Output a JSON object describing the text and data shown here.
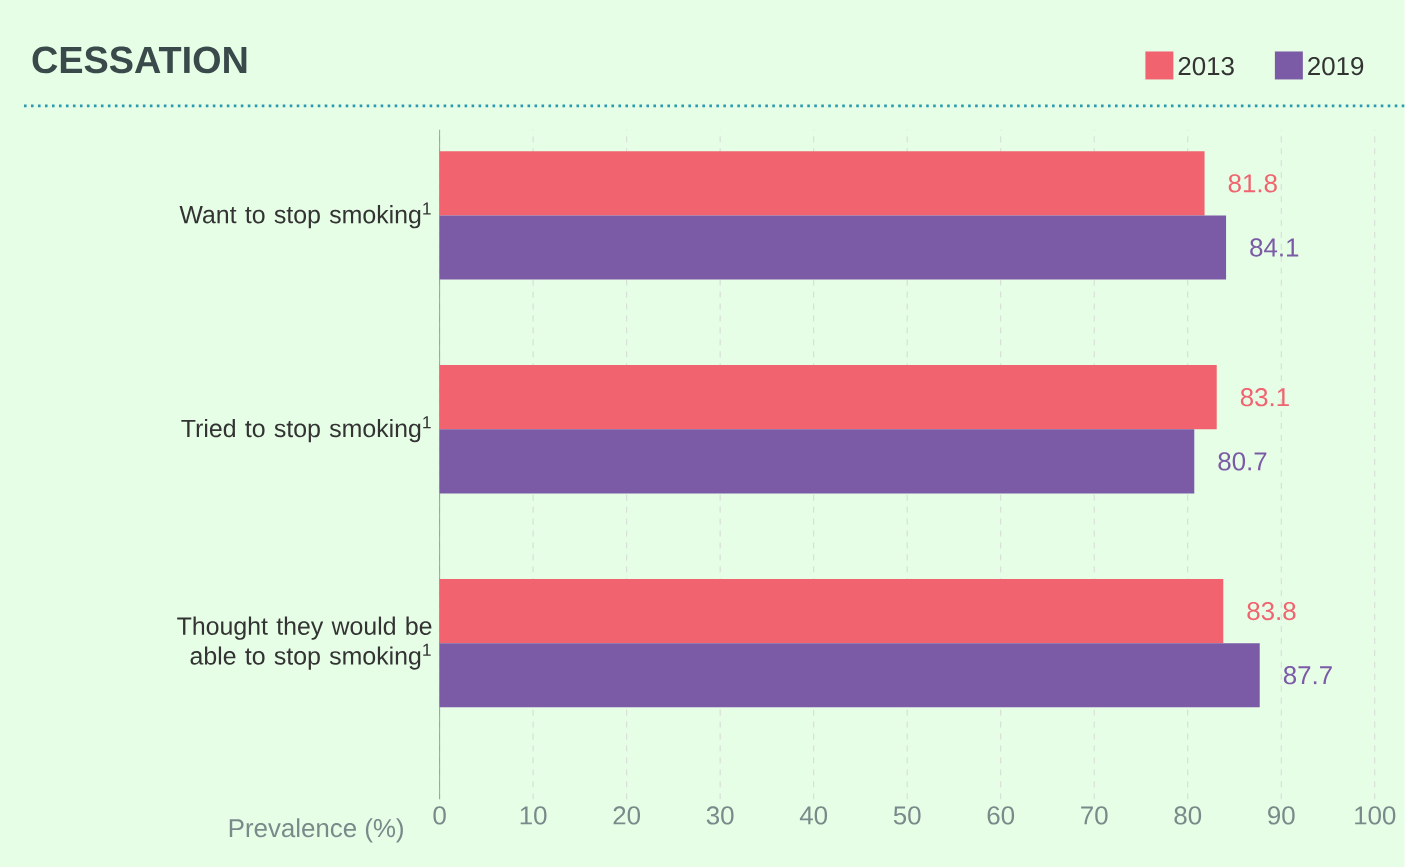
{
  "chart_data": {
    "type": "bar",
    "orientation": "horizontal",
    "title": "CESSATION",
    "xlabel": "Prevalence (%)",
    "categories": [
      "Want to stop smoking$^{1}$",
      "Tried to stop smoking$^{1}$",
      "Thought they would be able to stop smoking$^{1}$"
    ],
    "series": [
      {
        "name": "2013",
        "color": "#f0636f",
        "values": [
          81.8,
          83.1,
          83.8
        ]
      },
      {
        "name": "2019",
        "color": "#7b5aa6",
        "values": [
          84.1,
          80.7,
          87.7
        ]
      }
    ],
    "xlim": [
      0,
      100
    ],
    "xticks": [
      0,
      10,
      20,
      30,
      40,
      50,
      60,
      70,
      80,
      90,
      100
    ],
    "grid": "x",
    "legend": "top right",
    "data_labels": true
  }
}
